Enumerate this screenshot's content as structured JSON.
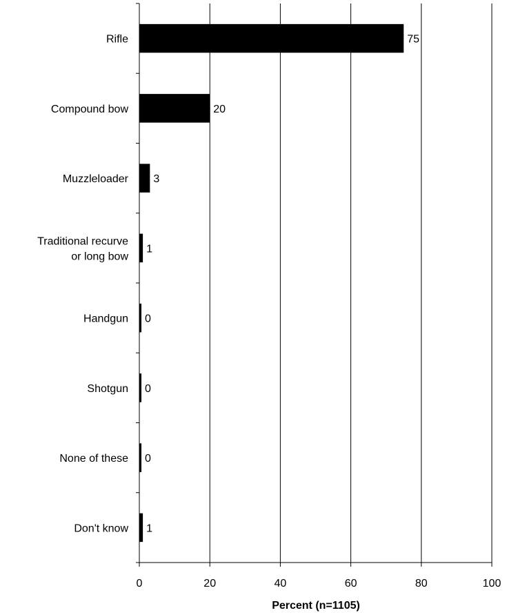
{
  "chart_data": {
    "type": "bar",
    "orientation": "horizontal",
    "categories": [
      "Rifle",
      "Compound bow",
      "Muzzleloader",
      "Traditional recurve or long bow",
      "Handgun",
      "Shotgun",
      "None of these",
      "Don't know"
    ],
    "category_lines": [
      [
        "Rifle"
      ],
      [
        "Compound bow"
      ],
      [
        "Muzzleloader"
      ],
      [
        "Traditional recurve",
        "or long bow"
      ],
      [
        "Handgun"
      ],
      [
        "Shotgun"
      ],
      [
        "None of these"
      ],
      [
        "Don't know"
      ]
    ],
    "values": [
      75,
      20,
      3,
      1,
      0,
      0,
      0,
      1
    ],
    "data_labels": [
      "75",
      "20",
      "3",
      "1",
      "0",
      "0",
      "0",
      "1"
    ],
    "xlabel": "Percent (n=1105)",
    "xlim": [
      0,
      100
    ],
    "xticks": [
      0,
      20,
      40,
      60,
      80,
      100
    ],
    "xtick_labels": [
      "0",
      "20",
      "40",
      "60",
      "80",
      "100"
    ],
    "grid": "vertical",
    "bar_color": "#000000"
  }
}
